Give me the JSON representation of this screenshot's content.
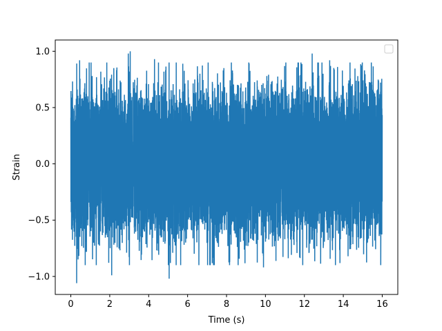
{
  "chart_data": {
    "type": "line",
    "title": "",
    "xlabel": "Time (s)",
    "ylabel": "Strain",
    "xlim": [
      -0.8,
      16.8
    ],
    "ylim": [
      -1.16,
      1.1
    ],
    "xticks": [
      0,
      2,
      4,
      6,
      8,
      10,
      12,
      14,
      16
    ],
    "xtick_labels": [
      "0",
      "2",
      "4",
      "6",
      "8",
      "10",
      "12",
      "14",
      "16"
    ],
    "yticks": [
      -1.0,
      -0.5,
      0.0,
      0.5,
      1.0
    ],
    "ytick_labels": [
      "−1.0",
      "−0.5",
      "0.0",
      "0.5",
      "1.0"
    ],
    "grid": false,
    "legend": {
      "placement": "top-right",
      "entries": []
    },
    "series": [
      {
        "color": "#1f77b4",
        "x_range": [
          0,
          16
        ],
        "description_of_values": "dense noise-like strain signal",
        "typical_band": [
          -0.6,
          0.62
        ],
        "max": 1.0,
        "min": -1.06,
        "extremes": [
          {
            "x": 0.3,
            "y": -1.06
          },
          {
            "x": 0.45,
            "y": 0.92
          },
          {
            "x": 2.1,
            "y": -0.99
          },
          {
            "x": 2.95,
            "y": 0.98
          },
          {
            "x": 3.05,
            "y": 1.0
          },
          {
            "x": 5.05,
            "y": -1.02
          },
          {
            "x": 4.3,
            "y": 0.93
          },
          {
            "x": 12.4,
            "y": 0.98
          },
          {
            "x": 13.3,
            "y": 0.92
          },
          {
            "x": 9.9,
            "y": -0.92
          }
        ]
      }
    ]
  }
}
